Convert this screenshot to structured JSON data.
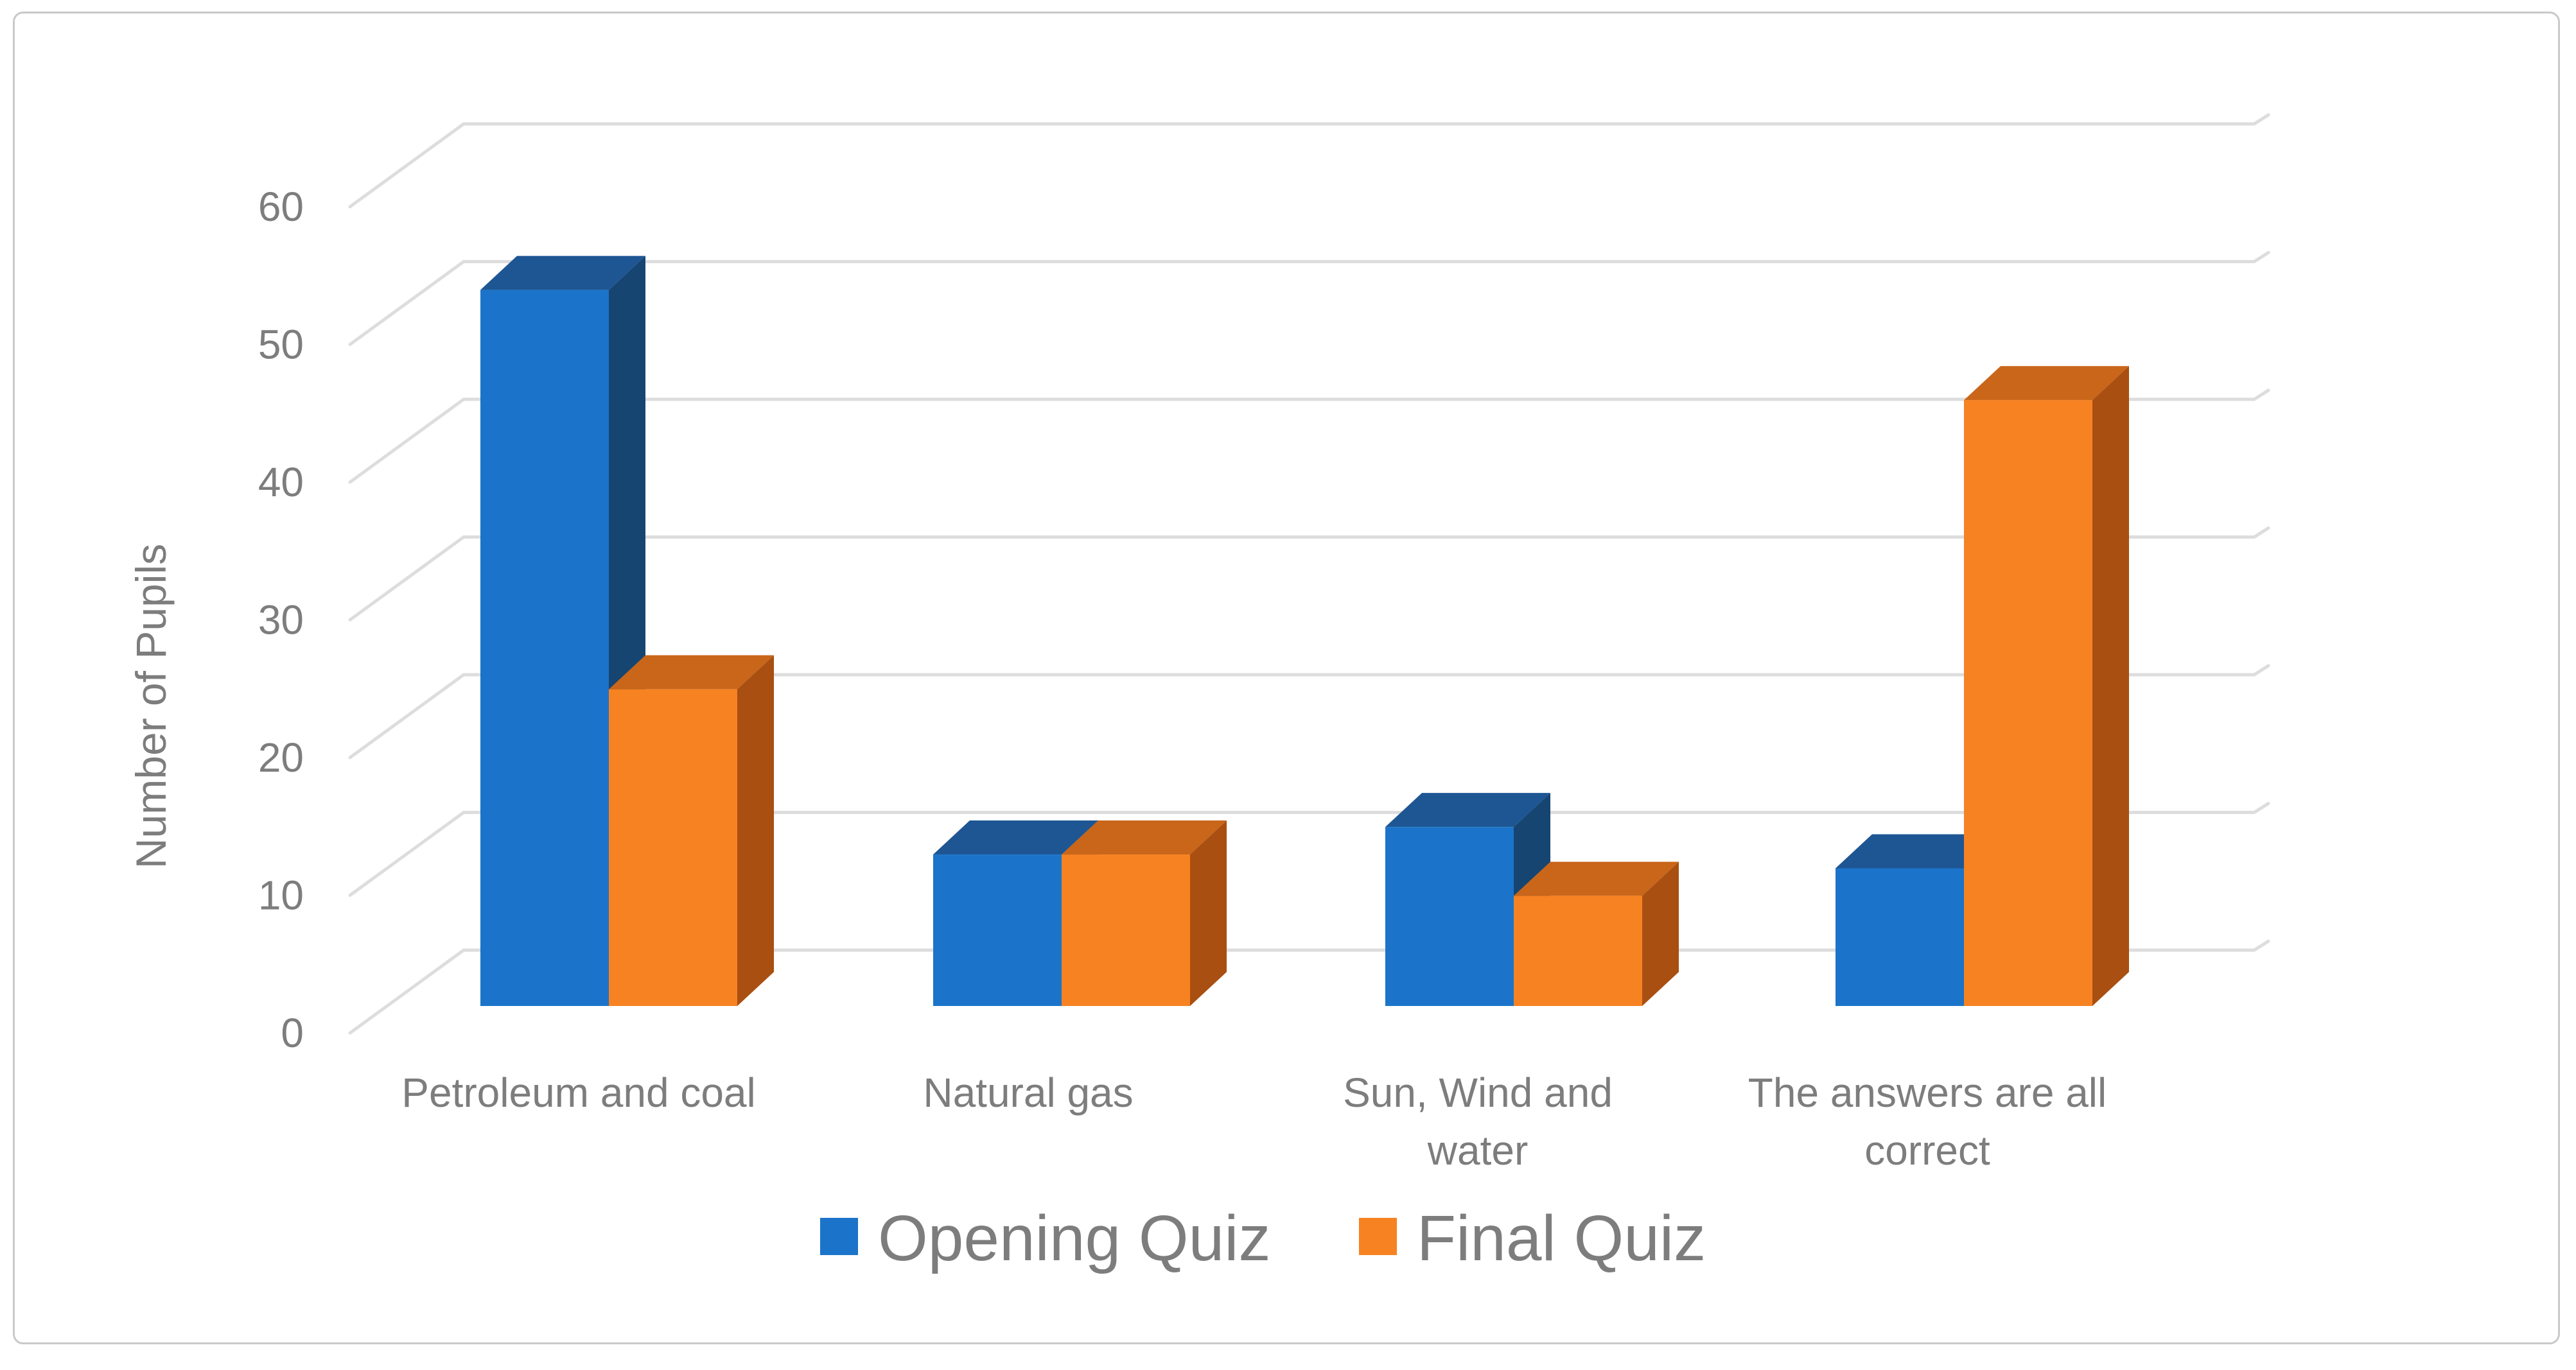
{
  "chart_data": {
    "type": "bar",
    "subtype": "3d-clustered-column",
    "title": "",
    "xlabel": "",
    "ylabel": "Number of Pupils",
    "categories": [
      "Petroleum and coal",
      "Natural gas",
      "Sun, Wind and water",
      "The answers are all correct"
    ],
    "category_lines": [
      [
        "Petroleum and coal"
      ],
      [
        "Natural gas"
      ],
      [
        "Sun, Wind and",
        "water"
      ],
      [
        "The answers are all",
        "correct"
      ]
    ],
    "series": [
      {
        "name": "Opening Quiz",
        "values": [
          52,
          11,
          13,
          10
        ],
        "color_front": "#1b74c9",
        "color_top": "#1e5694",
        "color_side": "#164572"
      },
      {
        "name": "Final Quiz",
        "values": [
          23,
          11,
          8,
          44
        ],
        "color_front": "#f78222",
        "color_top": "#c9661a",
        "color_side": "#a94f11"
      }
    ],
    "yticks": [
      0,
      10,
      20,
      30,
      40,
      50,
      60
    ],
    "ylim": [
      0,
      60
    ],
    "tick_step": 10,
    "grid": true,
    "legend_position": "bottom",
    "gridline_color": "#dddddd",
    "text_color": "#7d7d7d",
    "background_color": "#ffffff",
    "border_color": "#c9c9c9"
  }
}
